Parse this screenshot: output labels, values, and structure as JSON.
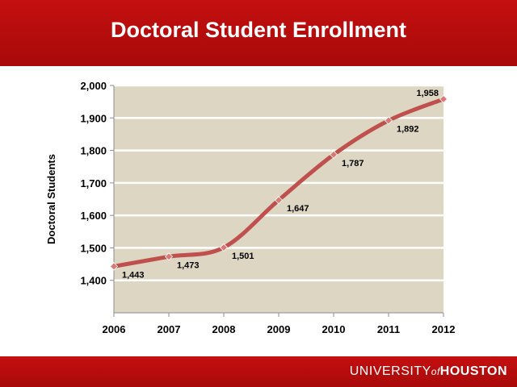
{
  "slide": {
    "title": "Doctoral Student Enrollment"
  },
  "footer": {
    "logo_university": "UNIVERSITY",
    "logo_of": "of",
    "logo_houston": "HOUSTON"
  },
  "colors": {
    "banner": "#b80c0c",
    "plot_bg": "#dcd6c2",
    "line": "#c0504d",
    "marker": "#d97876"
  },
  "chart_data": {
    "type": "line",
    "title": "",
    "xlabel": "",
    "ylabel": "Doctoral Students",
    "categories": [
      "2006",
      "2007",
      "2008",
      "2009",
      "2010",
      "2011",
      "2012"
    ],
    "series": [
      {
        "values": [
          1443,
          1473,
          1501,
          1647,
          1787,
          1892,
          1958
        ]
      }
    ],
    "data_labels": [
      "1,443",
      "1,473",
      "1,501",
      "1,647",
      "1,787",
      "1,892",
      "1,958"
    ],
    "ylim": [
      1300,
      2000
    ],
    "yticks": [
      1400,
      1500,
      1600,
      1700,
      1800,
      1900,
      2000
    ],
    "ytick_labels": [
      "1,400",
      "1,500",
      "1,600",
      "1,700",
      "1,800",
      "1,900",
      "2,000"
    ],
    "smooth": true,
    "grid": true,
    "legend": "none"
  }
}
